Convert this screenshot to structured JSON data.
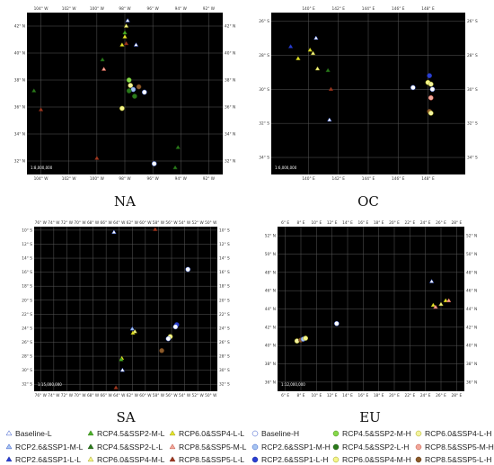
{
  "legend": [
    {
      "label": "Baseline-L",
      "shape": "triangle",
      "color": "#ffffff",
      "stroke": "#3355cc"
    },
    {
      "label": "RCP4.5&SSP2-M-L",
      "shape": "triangle",
      "color": "#4caf2a",
      "stroke": "#2e7d10"
    },
    {
      "label": "RCP6.0&SSP4-L-L",
      "shape": "triangle",
      "color": "#e6e62a",
      "stroke": "#9a9a10"
    },
    {
      "label": "Baseline-H",
      "shape": "circle",
      "color": "#ffffff",
      "stroke": "#3355cc"
    },
    {
      "label": "RCP4.5&SSP2-M-H",
      "shape": "circle",
      "color": "#86d94a",
      "stroke": "#4a8a1a"
    },
    {
      "label": "RCP6.0&SSP4-L-H",
      "shape": "circle",
      "color": "#f3f3a0",
      "stroke": "#b0b020"
    },
    {
      "label": "RCP2.6&SSP1-M-L",
      "shape": "triangle",
      "color": "#a8c6f0",
      "stroke": "#3355cc"
    },
    {
      "label": "RCP4.5&SSP2-L-L",
      "shape": "triangle",
      "color": "#2a7a1a",
      "stroke": "#1a5010"
    },
    {
      "label": "RCP8.5&SSP5-M-L",
      "shape": "triangle",
      "color": "#f2a79a",
      "stroke": "#c05040"
    },
    {
      "label": "RCP2.6&SSP1-M-H",
      "shape": "circle",
      "color": "#a8c6f0",
      "stroke": "#3355cc"
    },
    {
      "label": "RCP4.5&SSP2-L-H",
      "shape": "circle",
      "color": "#2a7a1a",
      "stroke": "#1a5010"
    },
    {
      "label": "RCP8.5&SSP5-M-H",
      "shape": "circle",
      "color": "#f2a79a",
      "stroke": "#c05040"
    },
    {
      "label": "RCP2.6&SSP1-L-L",
      "shape": "triangle",
      "color": "#2a3fd0",
      "stroke": "#1a2aa0"
    },
    {
      "label": "RCP6.0&SSP4-M-L",
      "shape": "triangle",
      "color": "#f5f58a",
      "stroke": "#a0a020"
    },
    {
      "label": "RCP8.5&SSP5-L-L",
      "shape": "triangle",
      "color": "#a03a20",
      "stroke": "#702010"
    },
    {
      "label": "RCP2.6&SSP1-L-H",
      "shape": "circle",
      "color": "#2a3fd0",
      "stroke": "#1a2aa0"
    },
    {
      "label": "RCP6.0&SSP4-M-H",
      "shape": "circle",
      "color": "#f5f58a",
      "stroke": "#a0a020"
    },
    {
      "label": "RCP8.5&SSP5-L-H",
      "shape": "circle",
      "color": "#8a5a2a",
      "stroke": "#5a3010"
    }
  ],
  "chart_data": [
    {
      "type": "scatter",
      "panel_label": "NA",
      "scale_text": "1:8,000,000",
      "lon_ticks": [
        "104° W",
        "102° W",
        "100° W",
        "98° W",
        "96° W",
        "94° W",
        "92° W"
      ],
      "lat_ticks": [
        "42° N",
        "40° N",
        "38° N",
        "36° N",
        "34° N",
        "32° N"
      ],
      "xlim": [
        -105,
        -91
      ],
      "ylim": [
        31,
        43
      ],
      "lon_step": 2,
      "lat_step": 2,
      "points": [
        {
          "lon": -97.8,
          "lat": 42.4,
          "s": "Baseline-L"
        },
        {
          "lon": -97.9,
          "lat": 42.0,
          "s": "RCP6.0&SSP4-M-L"
        },
        {
          "lon": -98.0,
          "lat": 41.5,
          "s": "RCP4.5&SSP2-M-L"
        },
        {
          "lon": -98.0,
          "lat": 41.2,
          "s": "RCP6.0&SSP4-L-L"
        },
        {
          "lon": -97.9,
          "lat": 40.7,
          "s": "RCP8.5&SSP5-L-L"
        },
        {
          "lon": -98.2,
          "lat": 40.6,
          "s": "RCP6.0&SSP4-L-L"
        },
        {
          "lon": -97.2,
          "lat": 40.6,
          "s": "Baseline-L"
        },
        {
          "lon": -99.6,
          "lat": 39.5,
          "s": "RCP4.5&SSP2-L-L"
        },
        {
          "lon": -99.5,
          "lat": 38.8,
          "s": "RCP8.5&SSP5-M-L"
        },
        {
          "lon": -97.7,
          "lat": 38.0,
          "s": "RCP4.5&SSP2-M-H"
        },
        {
          "lon": -97.6,
          "lat": 37.6,
          "s": "RCP6.0&SSP4-L-H"
        },
        {
          "lon": -97.4,
          "lat": 37.3,
          "s": "RCP2.6&SSP1-M-H"
        },
        {
          "lon": -97.7,
          "lat": 37.2,
          "s": "RCP4.5&SSP2-L-H"
        },
        {
          "lon": -97.0,
          "lat": 37.5,
          "s": "RCP8.5&SSP5-L-H"
        },
        {
          "lon": -96.6,
          "lat": 37.1,
          "s": "Baseline-H"
        },
        {
          "lon": -97.3,
          "lat": 36.8,
          "s": "RCP4.5&SSP2-L-H"
        },
        {
          "lon": -98.2,
          "lat": 35.9,
          "s": "RCP6.0&SSP4-M-H"
        },
        {
          "lon": -104.5,
          "lat": 37.2,
          "s": "RCP4.5&SSP2-L-L"
        },
        {
          "lon": -104.0,
          "lat": 35.8,
          "s": "RCP8.5&SSP5-L-L"
        },
        {
          "lon": -94.2,
          "lat": 33.0,
          "s": "RCP4.5&SSP2-L-L"
        },
        {
          "lon": -100.0,
          "lat": 32.2,
          "s": "RCP8.5&SSP5-L-L"
        },
        {
          "lon": -95.9,
          "lat": 31.8,
          "s": "Baseline-H"
        },
        {
          "lon": -94.4,
          "lat": 31.5,
          "s": "RCP4.5&SSP2-L-L"
        }
      ]
    },
    {
      "type": "scatter",
      "panel_label": "OC",
      "scale_text": "1:6,000,000",
      "lon_ticks": [
        "140° E",
        "142° E",
        "144° E",
        "146° E",
        "148° E"
      ],
      "lat_ticks": [
        "26° S",
        "28° S",
        "30° S",
        "32° S",
        "34° S"
      ],
      "xlim": [
        137.5,
        150.5
      ],
      "ylim": [
        -35,
        -25.5
      ],
      "lon_step": 2,
      "lat_step": 2,
      "points": [
        {
          "lon": 138.8,
          "lat": -27.5,
          "s": "RCP2.6&SSP1-L-L"
        },
        {
          "lon": 140.5,
          "lat": -27.0,
          "s": "Baseline-L"
        },
        {
          "lon": 140.1,
          "lat": -27.7,
          "s": "RCP6.0&SSP4-L-L"
        },
        {
          "lon": 140.3,
          "lat": -27.9,
          "s": "RCP6.0&SSP4-M-L"
        },
        {
          "lon": 139.3,
          "lat": -28.2,
          "s": "RCP6.0&SSP4-L-L"
        },
        {
          "lon": 140.6,
          "lat": -28.8,
          "s": "RCP6.0&SSP4-M-L"
        },
        {
          "lon": 141.3,
          "lat": -28.9,
          "s": "RCP4.5&SSP2-L-L"
        },
        {
          "lon": 141.5,
          "lat": -30.0,
          "s": "RCP8.5&SSP5-L-L"
        },
        {
          "lon": 141.4,
          "lat": -31.8,
          "s": "Baseline-L"
        },
        {
          "lon": 148.1,
          "lat": -29.2,
          "s": "RCP2.6&SSP1-L-H"
        },
        {
          "lon": 148.0,
          "lat": -29.6,
          "s": "RCP6.0&SSP4-M-H"
        },
        {
          "lon": 148.2,
          "lat": -29.7,
          "s": "RCP6.0&SSP4-L-H"
        },
        {
          "lon": 148.3,
          "lat": -30.0,
          "s": "Baseline-H"
        },
        {
          "lon": 147.0,
          "lat": -29.9,
          "s": "Baseline-H"
        },
        {
          "lon": 148.2,
          "lat": -30.5,
          "s": "RCP8.5&SSP5-M-H"
        },
        {
          "lon": 148.1,
          "lat": -31.3,
          "s": "RCP8.5&SSP5-L-H"
        },
        {
          "lon": 148.2,
          "lat": -31.4,
          "s": "RCP6.0&SSP4-L-H"
        }
      ]
    },
    {
      "type": "scatter",
      "panel_label": "SA",
      "scale_text": "1:15,000,000",
      "lon_ticks": [
        "76° W",
        "74° W",
        "72° W",
        "70° W",
        "68° W",
        "66° W",
        "64° W",
        "62° W",
        "60° W",
        "58° W",
        "56° W",
        "54° W",
        "52° W",
        "50° W"
      ],
      "lat_ticks": [
        "10° S",
        "12° S",
        "14° S",
        "16° S",
        "18° S",
        "20° S",
        "22° S",
        "24° S",
        "26° S",
        "28° S",
        "30° S",
        "32° S"
      ],
      "xlim": [
        -77,
        -49
      ],
      "ylim": [
        -33,
        -9.5
      ],
      "lon_step": 2,
      "lat_step": 2,
      "points": [
        {
          "lon": -64.8,
          "lat": -10.3,
          "s": "Baseline-L"
        },
        {
          "lon": -58.5,
          "lat": -9.9,
          "s": "RCP8.5&SSP5-L-L"
        },
        {
          "lon": -53.5,
          "lat": -15.6,
          "s": "Baseline-H"
        },
        {
          "lon": -62.0,
          "lat": -24.1,
          "s": "RCP2.6&SSP1-M-L"
        },
        {
          "lon": -61.6,
          "lat": -24.5,
          "s": "RCP6.0&SSP4-M-L"
        },
        {
          "lon": -61.9,
          "lat": -24.7,
          "s": "RCP6.0&SSP4-L-L"
        },
        {
          "lon": -55.2,
          "lat": -23.5,
          "s": "RCP2.6&SSP1-L-H"
        },
        {
          "lon": -55.4,
          "lat": -23.8,
          "s": "Baseline-H"
        },
        {
          "lon": -56.2,
          "lat": -25.2,
          "s": "RCP6.0&SSP4-M-H"
        },
        {
          "lon": -56.5,
          "lat": -25.5,
          "s": "Baseline-H"
        },
        {
          "lon": -57.5,
          "lat": -27.2,
          "s": "RCP8.5&SSP5-L-H"
        },
        {
          "lon": -63.6,
          "lat": -28.3,
          "s": "RCP6.0&SSP4-L-L"
        },
        {
          "lon": -63.7,
          "lat": -28.5,
          "s": "RCP4.5&SSP2-M-L"
        },
        {
          "lon": -63.5,
          "lat": -30.0,
          "s": "Baseline-L"
        },
        {
          "lon": -64.5,
          "lat": -32.5,
          "s": "RCP8.5&SSP5-L-L"
        }
      ]
    },
    {
      "type": "scatter",
      "panel_label": "EU",
      "scale_text": "1:12,000,000",
      "lon_ticks": [
        "6° E",
        "8° E",
        "10° E",
        "12° E",
        "14° E",
        "16° E",
        "18° E",
        "20° E",
        "22° E",
        "24° E",
        "26° E",
        "28° E"
      ],
      "lat_ticks": [
        "52° N",
        "50° N",
        "48° N",
        "46° N",
        "44° N",
        "42° N",
        "40° N",
        "38° N",
        "36° N"
      ],
      "xlim": [
        5,
        29
      ],
      "ylim": [
        35,
        53
      ],
      "lon_step": 2,
      "lat_step": 2,
      "points": [
        {
          "lon": 7.5,
          "lat": 40.5,
          "s": "RCP6.0&SSP4-L-H"
        },
        {
          "lon": 8.0,
          "lat": 40.6,
          "s": "RCP8.5&SSP5-L-H"
        },
        {
          "lon": 8.3,
          "lat": 40.7,
          "s": "RCP2.6&SSP1-M-H"
        },
        {
          "lon": 8.6,
          "lat": 40.8,
          "s": "RCP6.0&SSP4-M-H"
        },
        {
          "lon": 12.6,
          "lat": 42.4,
          "s": "Baseline-H"
        },
        {
          "lon": 24.8,
          "lat": 47.0,
          "s": "Baseline-L"
        },
        {
          "lon": 25.0,
          "lat": 44.4,
          "s": "RCP6.0&SSP4-L-L"
        },
        {
          "lon": 25.3,
          "lat": 44.2,
          "s": "RCP8.5&SSP5-M-L"
        },
        {
          "lon": 26.0,
          "lat": 44.5,
          "s": "RCP6.0&SSP4-M-L"
        },
        {
          "lon": 26.6,
          "lat": 44.9,
          "s": "RCP6.0&SSP4-L-L"
        },
        {
          "lon": 27.0,
          "lat": 44.9,
          "s": "RCP8.5&SSP5-M-L"
        }
      ]
    }
  ]
}
